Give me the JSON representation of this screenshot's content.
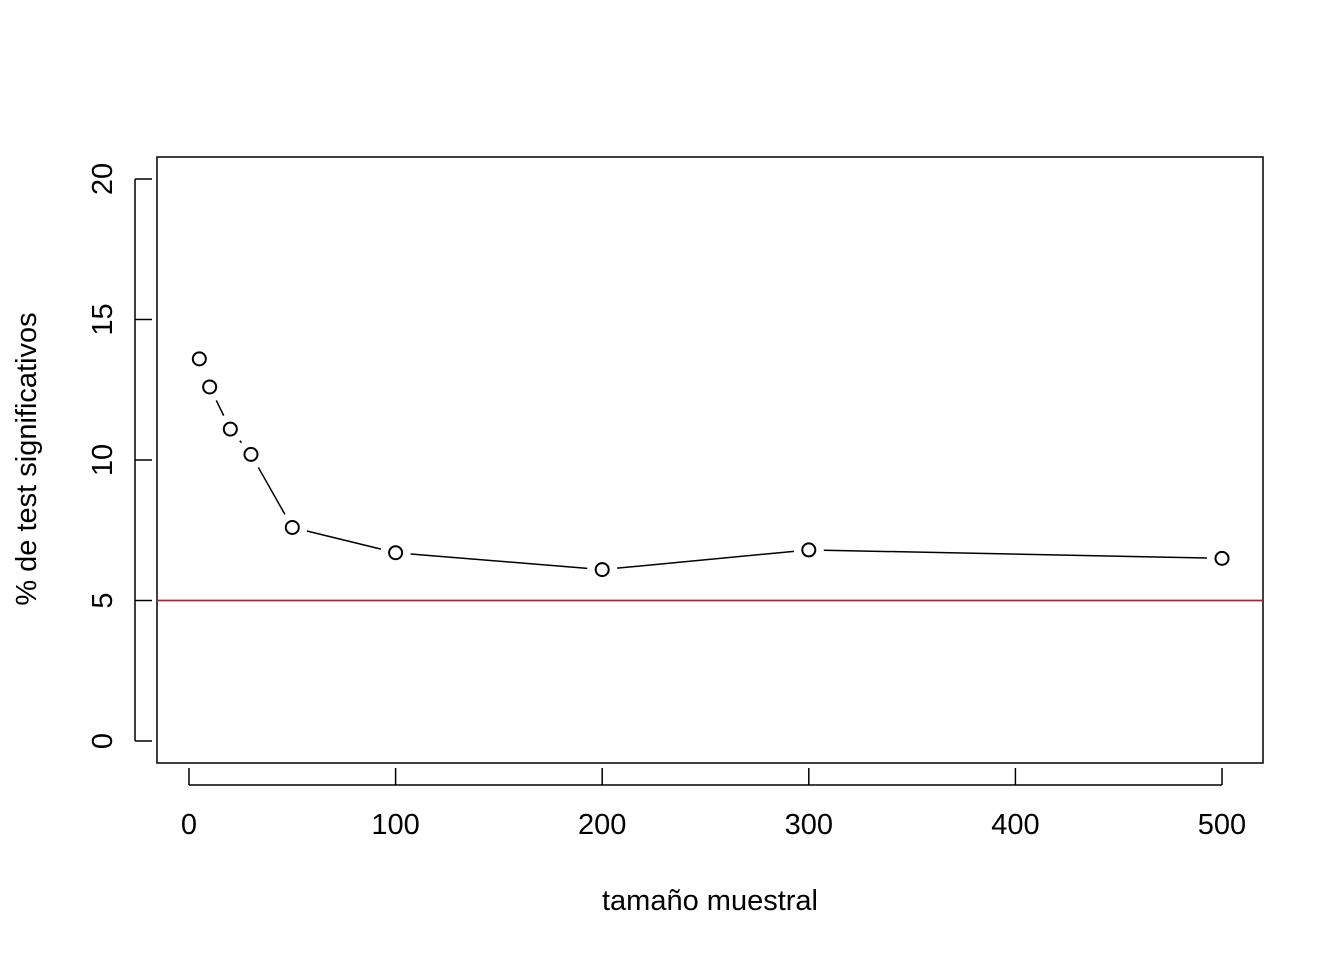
{
  "chart_data": {
    "type": "line",
    "title": "",
    "xlabel": "tamaño muestral",
    "ylabel": "% de test significativos",
    "xlim": [
      0,
      500
    ],
    "ylim": [
      0,
      20
    ],
    "x_ticks": [
      0,
      100,
      200,
      300,
      400,
      500
    ],
    "y_ticks": [
      0,
      5,
      10,
      15,
      20
    ],
    "series": [
      {
        "x": [
          5,
          10,
          20,
          30,
          50,
          100,
          200,
          300,
          500
        ],
        "y": [
          13.6,
          12.6,
          11.1,
          10.2,
          7.6,
          6.7,
          6.1,
          6.8,
          6.5
        ],
        "marker": "open-circle",
        "line": "solid",
        "color": "#000000"
      }
    ],
    "reference_line": {
      "y": 5,
      "color": "#a52a2a"
    },
    "grid": false,
    "box": true
  }
}
